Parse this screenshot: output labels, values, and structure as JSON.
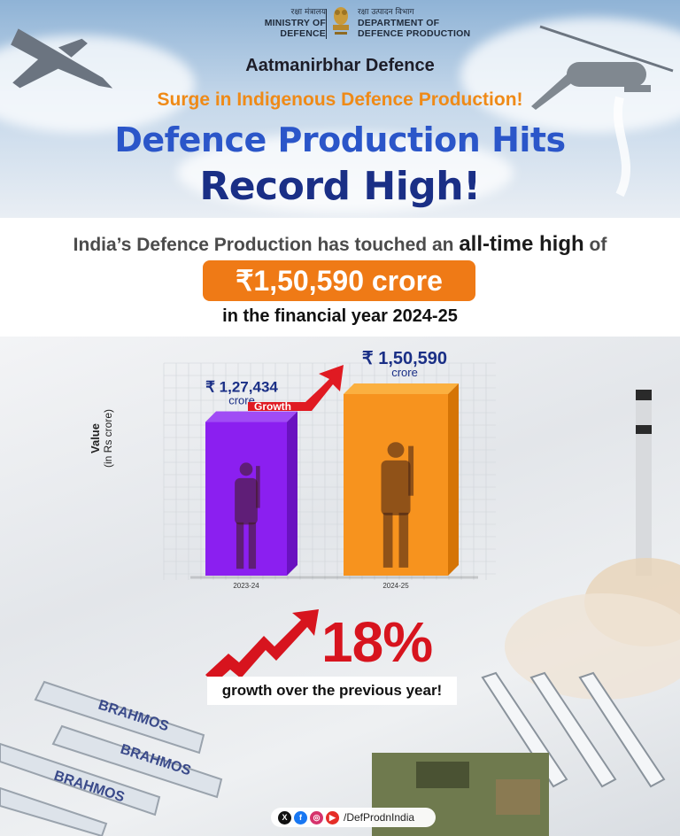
{
  "header": {
    "ministry_hindi": "रक्षा मंत्रालय",
    "ministry_en_1": "MINISTRY OF",
    "ministry_en_2": "DEFENCE",
    "dept_hindi": "रक्षा उत्पादन विभाग",
    "dept_en_1": "DEPARTMENT OF",
    "dept_en_2": "DEFENCE PRODUCTION"
  },
  "kicker": "Aatmanirbhar Defence",
  "subhead": "Surge in Indigenous Defence Production!",
  "title_line1": "Defence Production Hits",
  "title_line2": "Record High!",
  "summary": {
    "prefix": "India’s Defence Production has touched an ",
    "highlight": "all-time high",
    "suffix": " of",
    "amount": "₹1,50,590 crore",
    "period": "in the financial year 2024-25"
  },
  "chart_data": {
    "type": "bar",
    "categories": [
      "2023-24",
      "2024-25"
    ],
    "values": [
      127434,
      150590
    ],
    "value_labels": [
      "₹ 1,27,434",
      "₹ 1,50,590"
    ],
    "unit_label": "crore",
    "ylabel": "Value",
    "ylabel_sub": "(in Rs crore)",
    "bar_colors": [
      "#8b1ff0",
      "#f7931e"
    ],
    "growth_label": "Growth"
  },
  "growth": {
    "percent": "18%",
    "caption": "growth over the previous year!"
  },
  "footer": {
    "handle": "/DefProdnIndia",
    "social_icons": [
      "x-icon",
      "facebook-icon",
      "instagram-icon",
      "youtube-icon"
    ]
  },
  "colors": {
    "accent_orange": "#ef7a16",
    "title_blue": "#2b56c9",
    "title_navy": "#1a2f86",
    "growth_red": "#d7141e"
  }
}
